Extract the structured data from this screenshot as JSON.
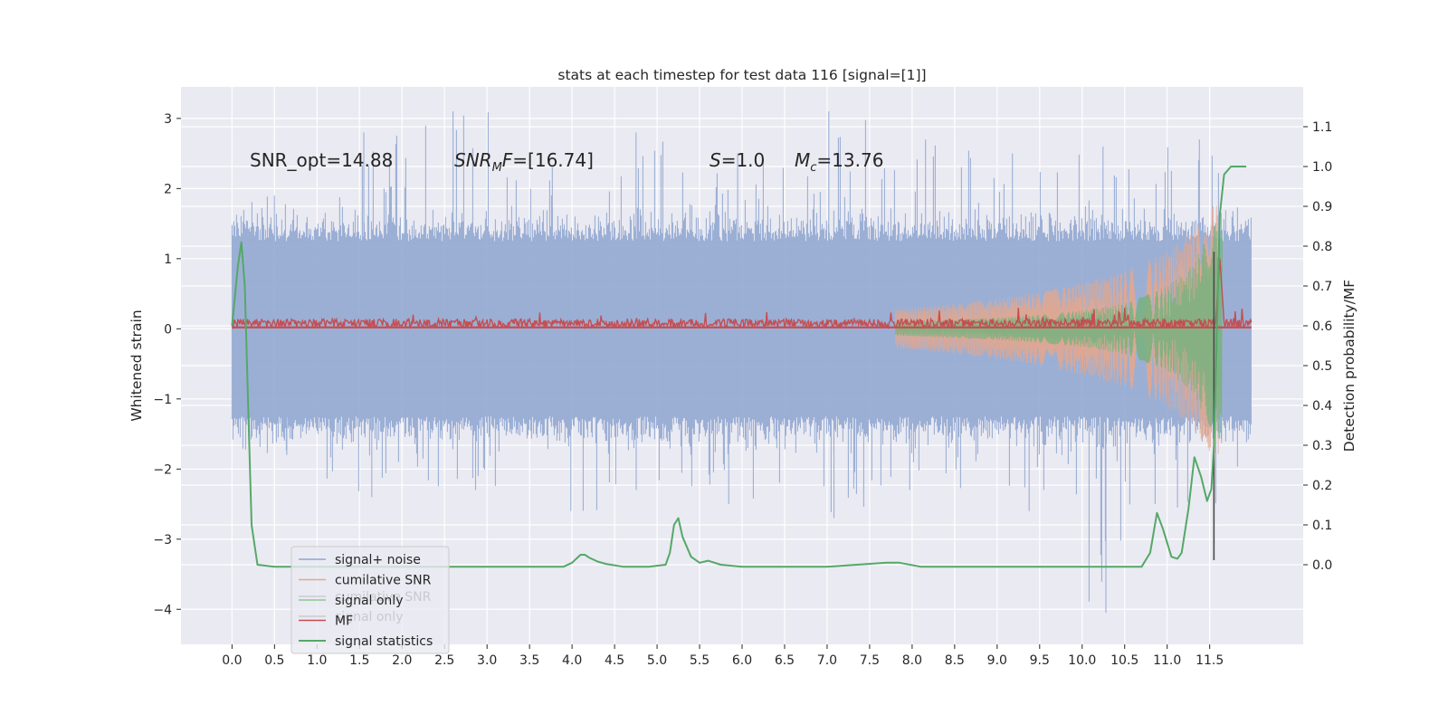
{
  "chart_data": {
    "type": "line",
    "title": "stats at each timestep for test data 116 [signal=[1]]",
    "xlabel": "",
    "ylabel": "Whitened strain",
    "ylabel_right": "Detection probability/MF",
    "xlim": [
      -0.6,
      12.6
    ],
    "ylim": [
      -4.5,
      3.45
    ],
    "ylim_right": [
      -0.2,
      1.2
    ],
    "x_ticks": [
      0.0,
      0.5,
      1.0,
      1.5,
      2.0,
      2.5,
      3.0,
      3.5,
      4.0,
      4.5,
      5.0,
      5.5,
      6.0,
      6.5,
      7.0,
      7.5,
      8.0,
      8.5,
      9.0,
      9.5,
      10.0,
      10.5,
      11.0,
      11.5
    ],
    "x_tick_labels": [
      "0.0",
      "0.5",
      "1.0",
      "1.5",
      "2.0",
      "2.5",
      "3.0",
      "3.5",
      "4.0",
      "4.5",
      "5.0",
      "5.5",
      "6.0",
      "6.5",
      "7.0",
      "7.5",
      "8.0",
      "8.5",
      "9.0",
      "9.5",
      "10.0",
      "10.5",
      "11.0",
      "11.5"
    ],
    "y_ticks": [
      -4,
      -3,
      -2,
      -1,
      0,
      1,
      2,
      3
    ],
    "y_tick_labels": [
      "−4",
      "−3",
      "−2",
      "−1",
      "0",
      "1",
      "2",
      "3"
    ],
    "y_right_ticks": [
      0.0,
      0.1,
      0.2,
      0.3,
      0.4,
      0.5,
      0.6,
      0.7,
      0.8,
      0.9,
      1.0,
      1.1
    ],
    "y_right_tick_labels": [
      "0.0",
      "0.1",
      "0.2",
      "0.3",
      "0.4",
      "0.5",
      "0.6",
      "0.7",
      "0.8",
      "0.9",
      "1.0",
      "1.1"
    ],
    "grid": true,
    "annotations": {
      "snr_opt": "SNR_opt=14.88",
      "snr_mf_sym": "SNR",
      "snr_mf_sub": "M",
      "snr_mf_sym2": "F",
      "snr_mf_val": "=[16.74]",
      "s_sym": "S",
      "s_val": "=1.0",
      "mc_sym": "M",
      "mc_sub": "c",
      "mc_val": "=13.76"
    },
    "legend": {
      "placement": "lower-left",
      "entries": [
        {
          "label": "signal+ noise",
          "color": "#8fa6cf"
        },
        {
          "label": "cumilative SNR",
          "color": "#e1a98d"
        },
        {
          "label": "signal only",
          "color": "#8fc49a"
        },
        {
          "label": "MF",
          "color": "#c44e52"
        },
        {
          "label": "signal statistics",
          "color": "#55a868"
        }
      ],
      "ghost_entries": [
        {
          "label": "cumilative SNR",
          "color": "#c9c9cf"
        },
        {
          "label": "signal only",
          "color": "#c9c9cf"
        }
      ]
    },
    "series": [
      {
        "name": "signal+ noise",
        "axis": "left",
        "style": "noise-band",
        "color": "#92a8d1",
        "x_range": [
          0.0,
          11.99
        ],
        "typical_amplitude": 1.25,
        "max_values": [
          1.9,
          2.8,
          3.1,
          2.3,
          2.8,
          2.5,
          3.1,
          2.7,
          2.5,
          2.6,
          2.7
        ],
        "min_values": [
          -1.8,
          -2.4,
          -2.3,
          -2.6,
          -2.3,
          -2.5,
          -2.7,
          -2.3,
          -2.6,
          -4.05,
          -2.55
        ]
      },
      {
        "name": "cumilative SNR",
        "axis": "left",
        "style": "chirp-envelope",
        "color": "#e8a789",
        "x": [
          7.8,
          8.5,
          9.0,
          9.5,
          10.0,
          10.5,
          11.0,
          11.3,
          11.5,
          11.6
        ],
        "envelope": [
          0.28,
          0.35,
          0.42,
          0.52,
          0.65,
          0.82,
          1.1,
          1.4,
          1.75,
          1.8
        ]
      },
      {
        "name": "signal only",
        "axis": "left",
        "style": "chirp-envelope",
        "color": "#77b27e",
        "x": [
          7.8,
          8.5,
          9.0,
          9.5,
          10.0,
          10.5,
          11.0,
          11.3,
          11.5,
          11.65
        ],
        "envelope": [
          0.1,
          0.13,
          0.16,
          0.2,
          0.26,
          0.36,
          0.6,
          0.9,
          1.4,
          1.65
        ]
      },
      {
        "name": "MF",
        "axis": "left",
        "style": "noisy-line",
        "color": "#c44e52",
        "x_range": [
          0.0,
          11.99
        ],
        "baseline": 0.08,
        "peak_x": 11.62,
        "peak_value": 1.0
      },
      {
        "name": "signal statistics",
        "axis": "right",
        "color": "#55a868",
        "x": [
          0.0,
          0.07,
          0.11,
          0.15,
          0.19,
          0.23,
          0.3,
          0.5,
          1.0,
          2.0,
          3.0,
          3.9,
          4.0,
          4.05,
          4.1,
          4.15,
          4.2,
          4.3,
          4.4,
          4.6,
          4.9,
          5.1,
          5.15,
          5.2,
          5.25,
          5.3,
          5.4,
          5.5,
          5.6,
          5.75,
          6.0,
          7.0,
          7.7,
          7.85,
          8.1,
          9.0,
          10.0,
          10.7,
          10.8,
          10.88,
          10.95,
          11.05,
          11.12,
          11.17,
          11.25,
          11.32,
          11.4,
          11.47,
          11.52,
          11.55,
          11.58,
          11.62,
          11.67,
          11.75,
          11.85,
          11.93
        ],
        "values": [
          0.6,
          0.75,
          0.81,
          0.7,
          0.4,
          0.1,
          0.0,
          -0.005,
          -0.005,
          -0.005,
          -0.005,
          -0.005,
          0.005,
          0.015,
          0.025,
          0.025,
          0.018,
          0.008,
          0.002,
          -0.005,
          -0.005,
          0.0,
          0.03,
          0.1,
          0.117,
          0.07,
          0.02,
          0.005,
          0.01,
          0.0,
          -0.005,
          -0.005,
          0.005,
          0.005,
          -0.005,
          -0.005,
          -0.005,
          -0.005,
          0.03,
          0.13,
          0.09,
          0.02,
          0.015,
          0.03,
          0.14,
          0.27,
          0.22,
          0.16,
          0.19,
          0.3,
          0.55,
          0.88,
          0.98,
          1.0,
          1.0,
          1.0
        ]
      },
      {
        "name": "marker",
        "axis": "left",
        "style": "vline",
        "color": "#4a4a4a",
        "x": 11.55,
        "y_range": [
          -3.3,
          1.1
        ]
      }
    ]
  }
}
